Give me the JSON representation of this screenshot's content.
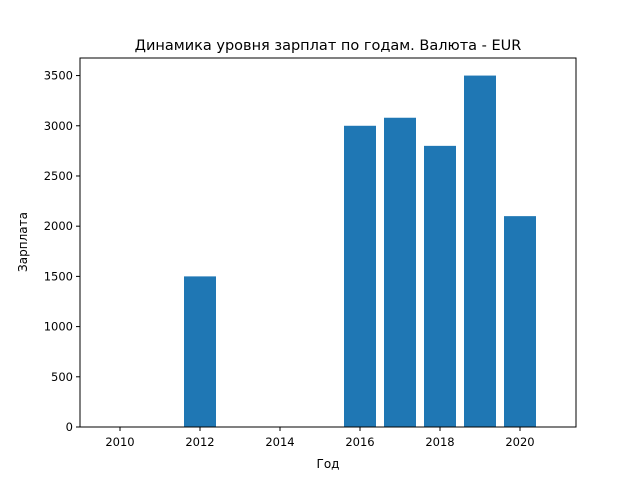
{
  "chart_data": {
    "type": "bar",
    "title": "Динамика уровня зарплат по годам. Валюта - EUR",
    "xlabel": "Год",
    "ylabel": "Зарплата",
    "x": [
      2012,
      2016,
      2017,
      2018,
      2019,
      2020
    ],
    "values": [
      1500,
      3000,
      3080,
      2800,
      3500,
      2100
    ],
    "xlim": [
      2009.0,
      2021.4
    ],
    "ylim": [
      0,
      3675
    ],
    "xticks": [
      2010,
      2012,
      2014,
      2016,
      2018,
      2020
    ],
    "yticks": [
      0,
      500,
      1000,
      1500,
      2000,
      2500,
      3000,
      3500
    ],
    "bar_width": 0.8,
    "bar_color": "#1f77b4",
    "grid": false,
    "legend": "none"
  }
}
